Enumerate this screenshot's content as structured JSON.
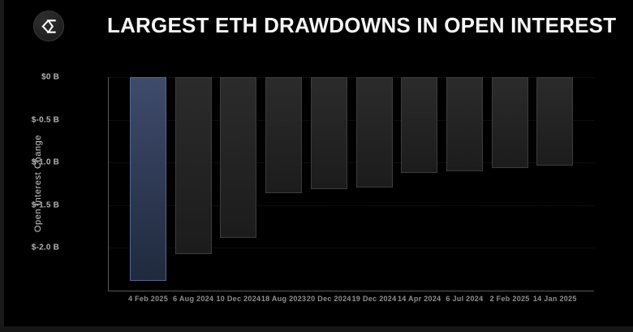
{
  "header": {
    "title": "LARGEST ETH DRAWDOWNS IN OPEN INTEREST",
    "logo_icon": "sigma-diamond-logo"
  },
  "chart_data": {
    "type": "bar",
    "title": "LARGEST ETH DRAWDOWNS IN OPEN INTEREST",
    "orientation": "vertical-negative",
    "categories": [
      "4 Feb 2025",
      "6 Aug 2024",
      "10 Dec 2024",
      "18 Aug 2023",
      "20 Dec 2024",
      "19 Dec 2024",
      "14 Apr 2024",
      "6 Jul 2024",
      "2 Feb 2025",
      "14 Jan 2025"
    ],
    "values": [
      -2.39,
      -2.07,
      -1.88,
      -1.36,
      -1.31,
      -1.29,
      -1.12,
      -1.1,
      -1.06,
      -1.04
    ],
    "unit": "billion USD",
    "xlabel": "",
    "ylabel": "Open Interest Change",
    "ylim": [
      -2.5,
      0
    ],
    "yticks": [
      {
        "value": 0,
        "label": "$0 B"
      },
      {
        "value": -0.5,
        "label": "$-0.5 B"
      },
      {
        "value": -1.0,
        "label": "$-1.0 B"
      },
      {
        "value": -1.5,
        "label": "$-1.5 B"
      },
      {
        "value": -2.0,
        "label": "$-2.0 B"
      }
    ],
    "grid": "horizontal-dotted",
    "legend": "none",
    "highlight_index": 0,
    "colors": {
      "background": "#000000",
      "title_text": "#f7f7f7",
      "highlight_bar_top": "#3e4b6b",
      "highlight_bar_bottom": "#202a3e",
      "highlight_bar_border": "#55678e",
      "bar_top": "#2b2b2b",
      "bar_bottom": "#1c1c1c",
      "bar_border": "#3c3c3c",
      "axis_line": "#5a5a5a",
      "grid_line": "rgba(255,255,255,0.10)",
      "y_tick_text": "#b3b3b3",
      "x_tick_text": "#8f8f8f",
      "axis_title_text": "#cccccc"
    }
  }
}
